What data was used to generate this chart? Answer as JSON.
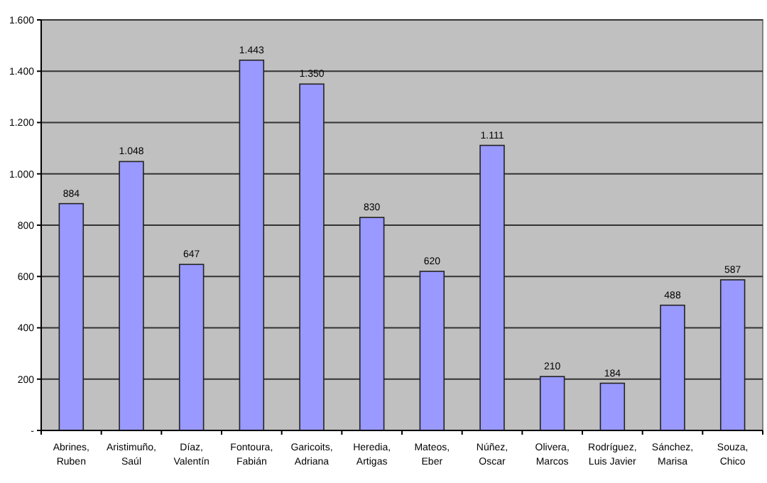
{
  "chart_data": {
    "type": "bar",
    "categories": [
      "Abrines, Ruben",
      "Aristimuño, Saúl",
      "Díaz, Valentín",
      "Fontoura, Fabián",
      "Garicoits, Adriana",
      "Heredia, Artigas",
      "Mateos, Eber",
      "Núñez, Oscar",
      "Olivera, Marcos",
      "Rodríguez, Luis Javier",
      "Sánchez, Marisa",
      "Souza, Chico"
    ],
    "values": [
      884,
      1048,
      647,
      1443,
      1350,
      830,
      620,
      1111,
      210,
      184,
      488,
      587
    ],
    "value_labels": [
      "884",
      "1.048",
      "647",
      "1.443",
      "1.350",
      "830",
      "620",
      "1.111",
      "210",
      "184",
      "488",
      "587"
    ],
    "color": "#9999ff",
    "ylim": [
      0,
      1600
    ],
    "yticks": [
      {
        "value": 0,
        "label": "-"
      },
      {
        "value": 200,
        "label": "200"
      },
      {
        "value": 400,
        "label": "400"
      },
      {
        "value": 600,
        "label": "600"
      },
      {
        "value": 800,
        "label": "800"
      },
      {
        "value": 1000,
        "label": "1.000"
      },
      {
        "value": 1200,
        "label": "1.200"
      },
      {
        "value": 1400,
        "label": "1.400"
      },
      {
        "value": 1600,
        "label": "1.600"
      }
    ],
    "grid": "y"
  }
}
